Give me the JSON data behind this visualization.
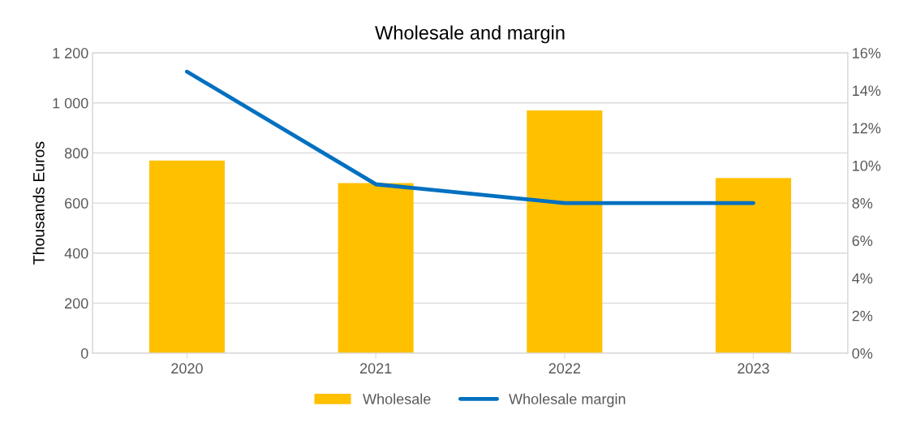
{
  "chart_data": {
    "type": "bar",
    "title": "Wholesale and margin",
    "ylabel": "Thousands Euros",
    "categories": [
      "2020",
      "2021",
      "2022",
      "2023"
    ],
    "series": [
      {
        "name": "Wholesale",
        "color": "#ffc000",
        "values": [
          770,
          680,
          970,
          700
        ]
      },
      {
        "name": "Wholesale margin",
        "type": "line",
        "axis": "y2",
        "color": "#0070c0",
        "values": [
          15,
          9,
          8,
          8
        ]
      }
    ],
    "ylim": [
      0,
      1200
    ],
    "yticks": [
      0,
      200,
      400,
      600,
      800,
      {
        "value": 1000,
        "label": "1 000"
      },
      {
        "value": 1200,
        "label": "1 200"
      }
    ],
    "y2lim": [
      0,
      16
    ],
    "y2ticks": [
      {
        "value": 0,
        "label": "0%"
      },
      {
        "value": 2,
        "label": "2%"
      },
      {
        "value": 4,
        "label": "4%"
      },
      {
        "value": 6,
        "label": "6%"
      },
      {
        "value": 8,
        "label": "8%"
      },
      {
        "value": 10,
        "label": "10%"
      },
      {
        "value": 12,
        "label": "12%"
      },
      {
        "value": 14,
        "label": "14%"
      },
      {
        "value": 16,
        "label": "16%"
      }
    ],
    "grid": "y",
    "legend": "bottom",
    "marker": "none",
    "line_style": "solid"
  }
}
